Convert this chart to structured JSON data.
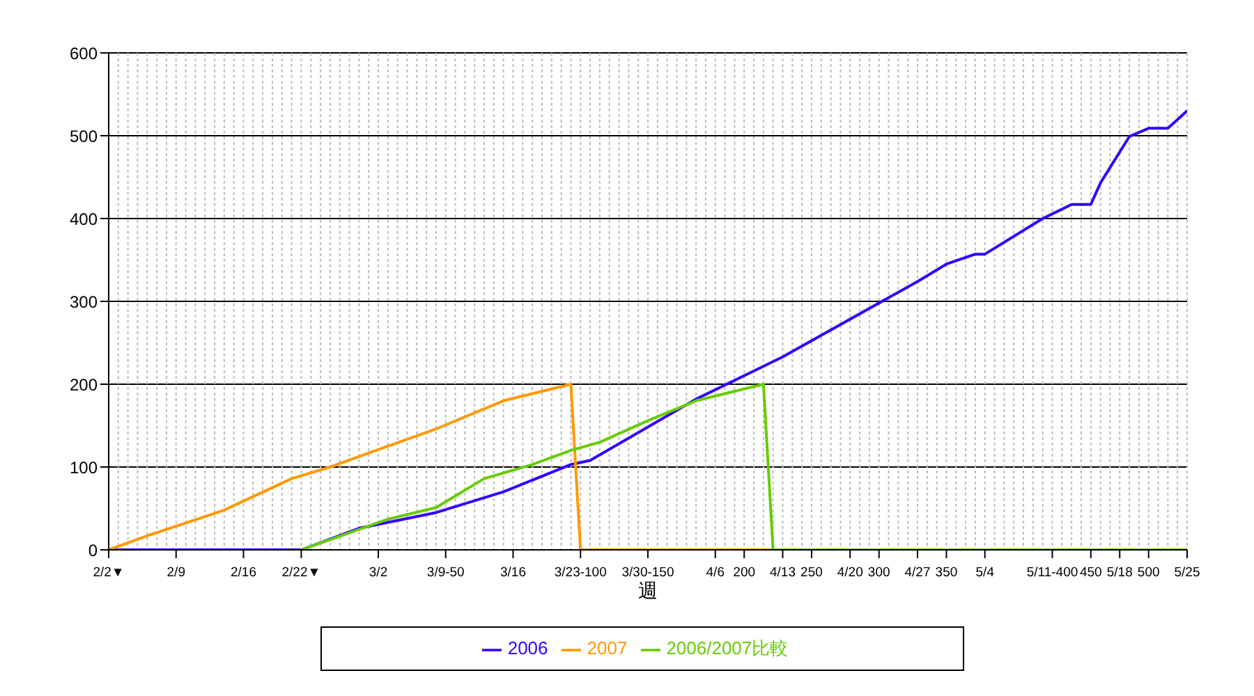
{
  "chart_data": {
    "type": "line",
    "xlabel": "週",
    "xlim": [
      "--02-02",
      "--05-25"
    ],
    "xticks": [
      {
        "value": "--02-02",
        "label": "2/2▼"
      },
      {
        "value": "--02-09",
        "label": "2/9"
      },
      {
        "value": "--02-16",
        "label": "2/16"
      },
      {
        "value": "--02-22",
        "label": "2/22▼"
      },
      {
        "value": "--03-02",
        "label": "3/2"
      },
      {
        "value": "--03-09",
        "label": "3/9-50"
      },
      {
        "value": "--03-16",
        "label": "3/16"
      },
      {
        "value": "--03-23",
        "label": "3/23-100"
      },
      {
        "value": "--03-30",
        "label": "3/30-150"
      },
      {
        "value": "--04-06",
        "label": "4/6"
      },
      {
        "value": "--04-09",
        "label": "200"
      },
      {
        "value": "--04-13",
        "label": "4/13"
      },
      {
        "value": "--04-16",
        "label": "250"
      },
      {
        "value": "--04-20",
        "label": "4/20"
      },
      {
        "value": "--04-23",
        "label": "300"
      },
      {
        "value": "--04-27",
        "label": "4/27"
      },
      {
        "value": "--04-30",
        "label": "350"
      },
      {
        "value": "--05-04",
        "label": "5/4"
      },
      {
        "value": "--05-11",
        "label": "5/11-400"
      },
      {
        "value": "--05-15",
        "label": "450"
      },
      {
        "value": "--05-18",
        "label": "5/18"
      },
      {
        "value": "--05-21",
        "label": "500"
      },
      {
        "value": "--05-25",
        "label": "5/25"
      }
    ],
    "ylim": [
      0,
      600
    ],
    "yticks": [
      0,
      100,
      200,
      300,
      400,
      500,
      600
    ],
    "grid": true,
    "legend": "bottom",
    "marker": "none",
    "line_style": "solid",
    "series": [
      {
        "name": "2006",
        "color": "#3300ff",
        "x": [
          "--02-02",
          "--02-22",
          "--02-28",
          "--03-08",
          "--03-15",
          "--03-22",
          "--03-24",
          "--04-04",
          "--04-13",
          "--04-27",
          "--04-30",
          "--05-03",
          "--05-04",
          "--05-10",
          "--05-13",
          "--05-15",
          "--05-16",
          "--05-19",
          "--05-21",
          "--05-23",
          "--05-25"
        ],
        "values": [
          0,
          0,
          26,
          45,
          70,
          103,
          108,
          182,
          233,
          324,
          345,
          357,
          357,
          400,
          417,
          417,
          443,
          499,
          509,
          509,
          530
        ]
      },
      {
        "name": "2007",
        "color": "#ff9900",
        "x": [
          "--02-02",
          "--02-06",
          "--02-14",
          "--02-21",
          "--02-25",
          "--03-01",
          "--03-08",
          "--03-15",
          "--03-22",
          "--03-23",
          "--05-25"
        ],
        "values": [
          0,
          17,
          48,
          86,
          100,
          117,
          146,
          180,
          200,
          0,
          0
        ]
      },
      {
        "name": "2006/2007比較",
        "color": "#66cc00",
        "x": [
          "--02-22",
          "--03-03",
          "--03-08",
          "--03-13",
          "--03-18",
          "--03-22",
          "--03-25",
          "--03-30",
          "--04-04",
          "--04-11",
          "--04-12",
          "--05-25"
        ],
        "values": [
          0,
          37,
          51,
          86,
          103,
          120,
          130,
          156,
          180,
          200,
          0,
          0
        ]
      }
    ]
  }
}
